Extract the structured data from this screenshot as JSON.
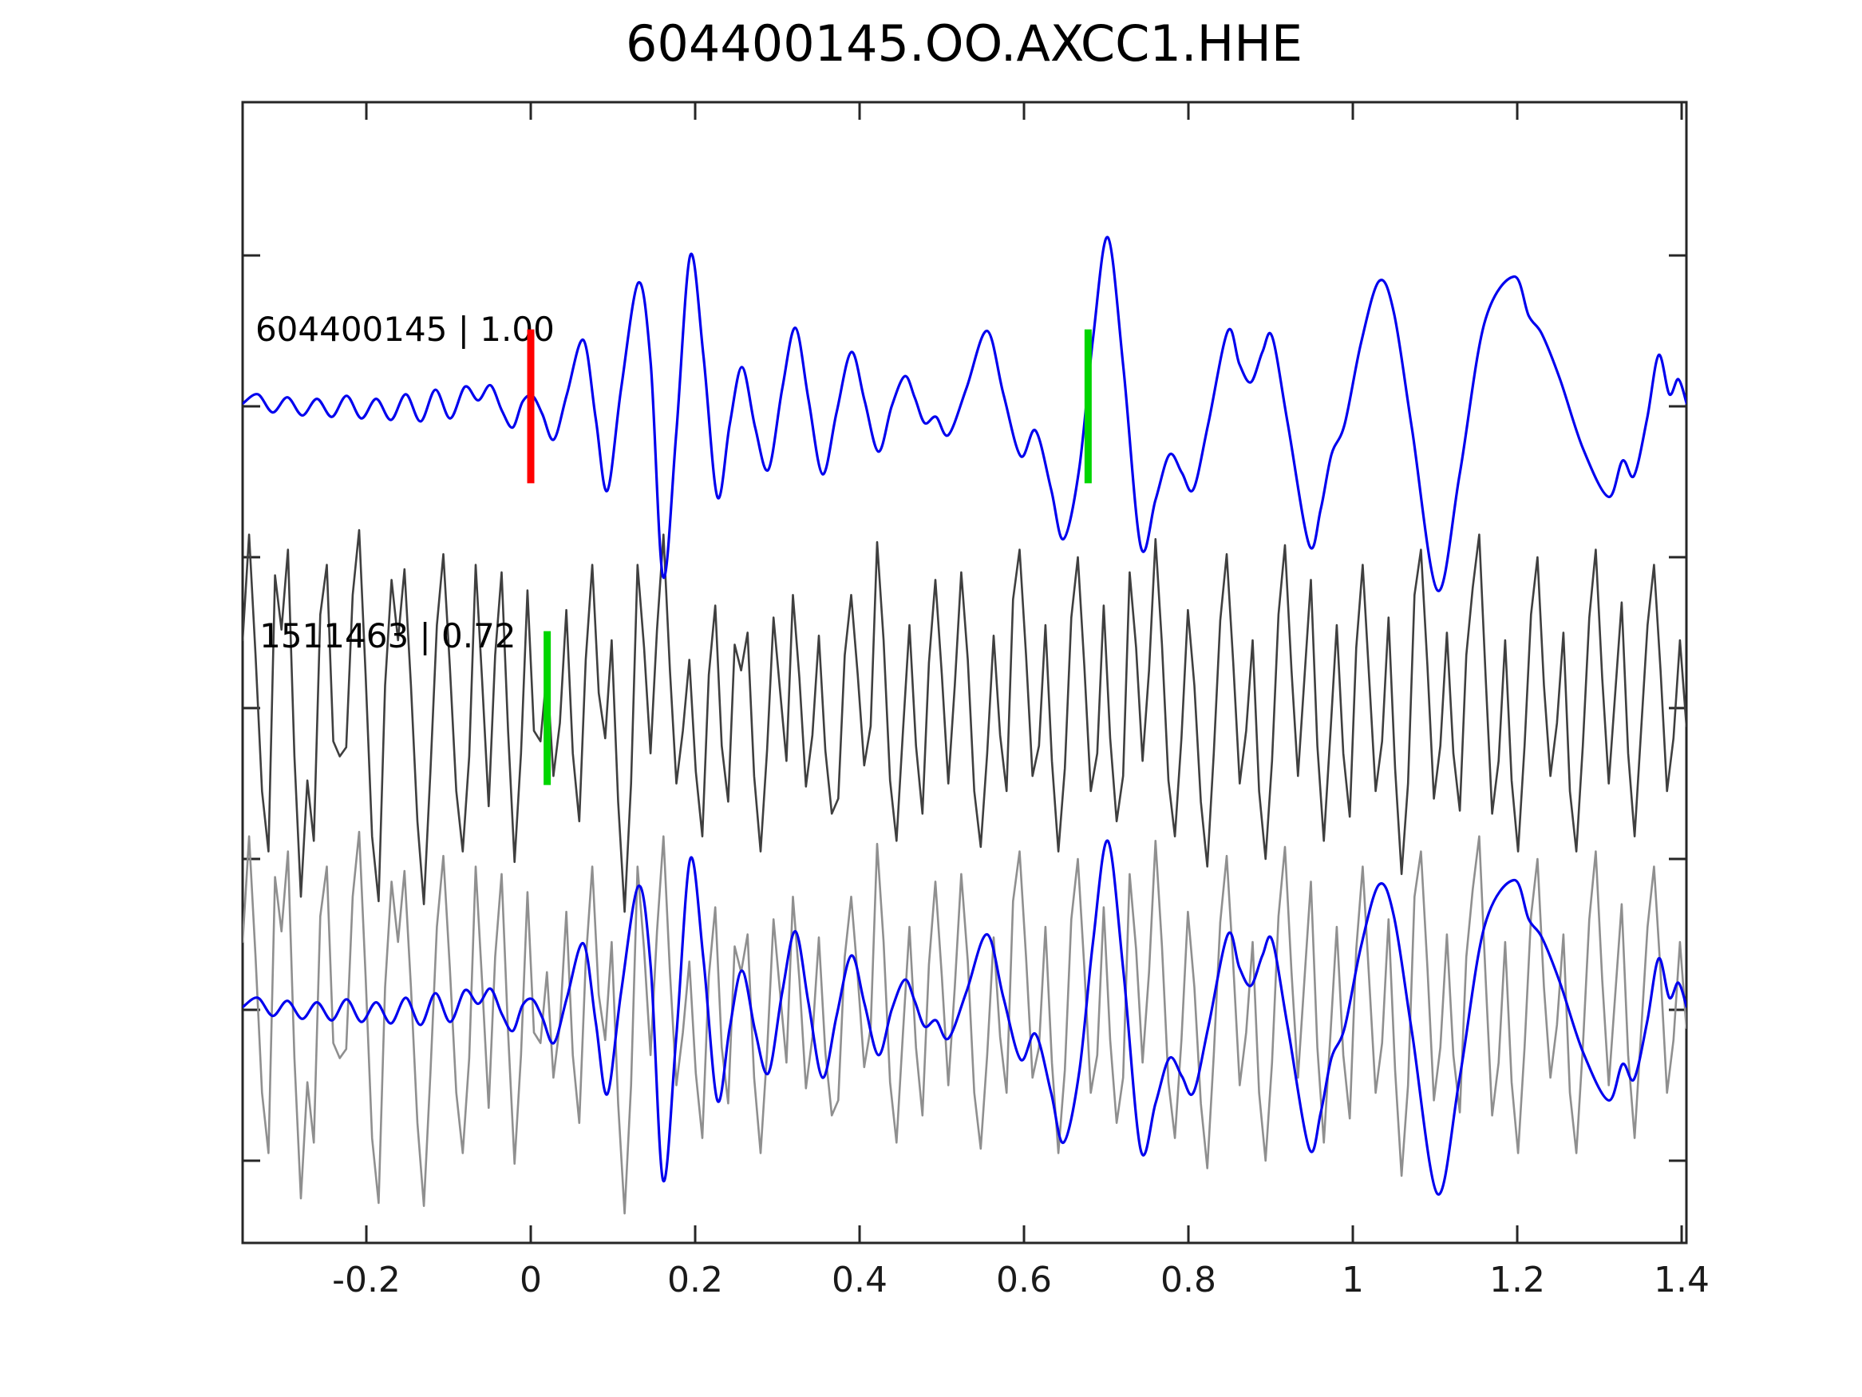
{
  "chart_data": {
    "type": "line",
    "title": "604400145.OO.AXCC1.HHE",
    "xlim": [
      -0.3505,
      1.4058
    ],
    "ylim": [
      -3.545,
      4.016
    ],
    "grid": false,
    "legend": "none",
    "x_ticks": {
      "values": [
        -0.2,
        0,
        0.2,
        0.4,
        0.6,
        0.8,
        1,
        1.2,
        1.4
      ],
      "labels": [
        "-0.2",
        "0",
        "0.2",
        "0.4",
        "0.6",
        "0.8",
        "1",
        "1.2",
        "1.4"
      ]
    },
    "y_ticks": {
      "values": [
        -3,
        -2,
        -1,
        0,
        1,
        2,
        3
      ]
    },
    "colors": {
      "master": "#0000ee",
      "match_dark": "#3f3f3f",
      "match_light": "#8f8f8f",
      "pick_reference": "#ff0000",
      "pick_correlated": "#00d500",
      "axis": "#262626"
    },
    "annotations": [
      {
        "text": "604400145 | 1.00",
        "t": -0.335,
        "u": 2.51
      },
      {
        "text": "1511463 | 0.72",
        "t": -0.33,
        "u": 0.48
      }
    ],
    "markers": [
      {
        "name": "pick-marker-reference",
        "t": 0.0,
        "offset": 2,
        "half_height": 0.51,
        "color": "#ff0000"
      },
      {
        "name": "pick-marker-master",
        "t": 0.678,
        "offset": 2,
        "half_height": 0.51,
        "color": "#00d500"
      },
      {
        "name": "pick-marker-match",
        "t": 0.02,
        "offset": 0,
        "half_height": 0.51,
        "color": "#00d500"
      }
    ],
    "traces": [
      {
        "id": "master",
        "style": "smooth",
        "offset": 2,
        "color": "#0000ee",
        "points": [
          [
            -0.35,
            0.02
          ],
          [
            -0.332,
            0.08
          ],
          [
            -0.314,
            -0.04
          ],
          [
            -0.296,
            0.06
          ],
          [
            -0.278,
            -0.06
          ],
          [
            -0.26,
            0.05
          ],
          [
            -0.242,
            -0.07
          ],
          [
            -0.224,
            0.07
          ],
          [
            -0.206,
            -0.08
          ],
          [
            -0.188,
            0.05
          ],
          [
            -0.17,
            -0.09
          ],
          [
            -0.152,
            0.08
          ],
          [
            -0.134,
            -0.1
          ],
          [
            -0.116,
            0.11
          ],
          [
            -0.098,
            -0.08
          ],
          [
            -0.08,
            0.13
          ],
          [
            -0.064,
            0.04
          ],
          [
            -0.049,
            0.14
          ],
          [
            -0.035,
            -0.03
          ],
          [
            -0.022,
            -0.14
          ],
          [
            -0.01,
            0.03
          ],
          [
            0.002,
            0.07
          ],
          [
            0.014,
            -0.05
          ],
          [
            0.028,
            -0.22
          ],
          [
            0.044,
            0.08
          ],
          [
            0.064,
            0.44
          ],
          [
            0.079,
            -0.08
          ],
          [
            0.093,
            -0.56
          ],
          [
            0.11,
            0.12
          ],
          [
            0.131,
            0.82
          ],
          [
            0.146,
            0.28
          ],
          [
            0.161,
            -1.13
          ],
          [
            0.177,
            -0.18
          ],
          [
            0.194,
            1.0
          ],
          [
            0.21,
            0.34
          ],
          [
            0.227,
            -0.6
          ],
          [
            0.242,
            -0.12
          ],
          [
            0.257,
            0.26
          ],
          [
            0.273,
            -0.14
          ],
          [
            0.289,
            -0.42
          ],
          [
            0.306,
            0.12
          ],
          [
            0.322,
            0.52
          ],
          [
            0.338,
            0.04
          ],
          [
            0.355,
            -0.45
          ],
          [
            0.372,
            -0.04
          ],
          [
            0.39,
            0.36
          ],
          [
            0.406,
            0.04
          ],
          [
            0.423,
            -0.3
          ],
          [
            0.439,
            0.0
          ],
          [
            0.455,
            0.2
          ],
          [
            0.467,
            0.06
          ],
          [
            0.479,
            -0.11
          ],
          [
            0.493,
            -0.07
          ],
          [
            0.508,
            -0.19
          ],
          [
            0.53,
            0.12
          ],
          [
            0.555,
            0.5
          ],
          [
            0.575,
            0.08
          ],
          [
            0.596,
            -0.33
          ],
          [
            0.614,
            -0.16
          ],
          [
            0.633,
            -0.55
          ],
          [
            0.648,
            -0.88
          ],
          [
            0.667,
            -0.42
          ],
          [
            0.684,
            0.45
          ],
          [
            0.702,
            1.12
          ],
          [
            0.721,
            0.25
          ],
          [
            0.742,
            -0.93
          ],
          [
            0.76,
            -0.62
          ],
          [
            0.777,
            -0.32
          ],
          [
            0.792,
            -0.44
          ],
          [
            0.806,
            -0.55
          ],
          [
            0.824,
            -0.12
          ],
          [
            0.848,
            0.5
          ],
          [
            0.862,
            0.28
          ],
          [
            0.876,
            0.16
          ],
          [
            0.89,
            0.36
          ],
          [
            0.902,
            0.46
          ],
          [
            0.921,
            -0.12
          ],
          [
            0.947,
            -0.92
          ],
          [
            0.961,
            -0.68
          ],
          [
            0.974,
            -0.32
          ],
          [
            0.99,
            -0.12
          ],
          [
            1.01,
            0.42
          ],
          [
            1.032,
            0.83
          ],
          [
            1.05,
            0.62
          ],
          [
            1.072,
            -0.15
          ],
          [
            1.103,
            -1.22
          ],
          [
            1.13,
            -0.45
          ],
          [
            1.16,
            0.55
          ],
          [
            1.196,
            0.86
          ],
          [
            1.214,
            0.6
          ],
          [
            1.23,
            0.48
          ],
          [
            1.252,
            0.18
          ],
          [
            1.28,
            -0.28
          ],
          [
            1.311,
            -0.6
          ],
          [
            1.328,
            -0.36
          ],
          [
            1.342,
            -0.46
          ],
          [
            1.358,
            -0.08
          ],
          [
            1.372,
            0.34
          ],
          [
            1.385,
            0.08
          ],
          [
            1.396,
            0.18
          ],
          [
            1.406,
            0.02
          ]
        ]
      },
      {
        "id": "match",
        "style": "jagged",
        "offset": 0,
        "color": "#3f3f3f",
        "values": [
          0.45,
          1.15,
          0.35,
          -0.55,
          -0.95,
          0.88,
          0.52,
          1.05,
          -0.32,
          -1.25,
          -0.48,
          -0.88,
          0.62,
          0.95,
          -0.22,
          -0.32,
          -0.26,
          0.75,
          1.18,
          0.22,
          -0.85,
          -1.28,
          0.15,
          0.85,
          0.45,
          0.92,
          0.15,
          -0.75,
          -1.3,
          -0.42,
          0.55,
          1.02,
          0.28,
          -0.55,
          -0.95,
          -0.32,
          0.95,
          0.18,
          -0.65,
          0.35,
          0.9,
          -0.15,
          -1.02,
          -0.3,
          0.78,
          -0.15,
          -0.22,
          0.25,
          -0.45,
          -0.1,
          0.65,
          -0.3,
          -0.75,
          0.32,
          0.95,
          0.1,
          -0.2,
          0.45,
          -0.62,
          -1.35,
          -0.5,
          0.95,
          0.4,
          -0.3,
          0.52,
          1.15,
          0.25,
          -0.5,
          -0.15,
          0.32,
          -0.42,
          -0.85,
          0.22,
          0.68,
          -0.25,
          -0.62,
          0.42,
          0.25,
          0.5,
          -0.45,
          -0.95,
          -0.28,
          0.6,
          0.12,
          -0.35,
          0.75,
          0.2,
          -0.52,
          -0.18,
          0.48,
          -0.28,
          -0.7,
          -0.6,
          0.35,
          0.75,
          0.22,
          -0.38,
          -0.12,
          1.1,
          0.45,
          -0.48,
          -0.88,
          -0.15,
          0.55,
          -0.25,
          -0.7,
          0.3,
          0.85,
          0.22,
          -0.5,
          0.15,
          0.9,
          0.32,
          -0.55,
          -0.92,
          -0.3,
          0.48,
          -0.18,
          -0.55,
          0.72,
          1.05,
          0.35,
          -0.45,
          -0.25,
          0.55,
          -0.35,
          -0.95,
          -0.4,
          0.6,
          1.0,
          0.28,
          -0.55,
          -0.3,
          0.68,
          -0.2,
          -0.75,
          -0.45,
          0.9,
          0.4,
          -0.35,
          0.25,
          1.12,
          0.42,
          -0.48,
          -0.85,
          -0.2,
          0.65,
          0.15,
          -0.62,
          -1.05,
          -0.3,
          0.58,
          1.02,
          0.3,
          -0.5,
          -0.15,
          0.45,
          -0.55,
          -1.0,
          -0.35,
          0.62,
          1.08,
          0.25,
          -0.45,
          0.2,
          0.85,
          -0.25,
          -0.88,
          -0.18,
          0.55,
          -0.3,
          -0.72,
          0.4,
          0.95,
          0.2,
          -0.55,
          -0.22,
          0.6,
          -0.4,
          -1.1,
          -0.5,
          0.75,
          1.05,
          0.28,
          -0.6,
          -0.25,
          0.5,
          -0.3,
          -0.68,
          0.35,
          0.8,
          1.15,
          0.2,
          -0.7,
          -0.35,
          0.45,
          -0.48,
          -0.95,
          -0.25,
          0.62,
          1.0,
          0.15,
          -0.45,
          -0.1,
          0.5,
          -0.55,
          -0.95,
          -0.25,
          0.6,
          1.05,
          0.2,
          -0.5,
          0.1,
          0.7,
          -0.3,
          -0.85,
          -0.15,
          0.55,
          0.95,
          0.25,
          -0.55,
          -0.2,
          0.45,
          -0.12
        ]
      }
    ],
    "overlay": {
      "offset": -2,
      "components": [
        {
          "ref": "match",
          "color": "#8f8f8f"
        },
        {
          "ref": "master",
          "color": "#0000ee"
        }
      ]
    }
  }
}
